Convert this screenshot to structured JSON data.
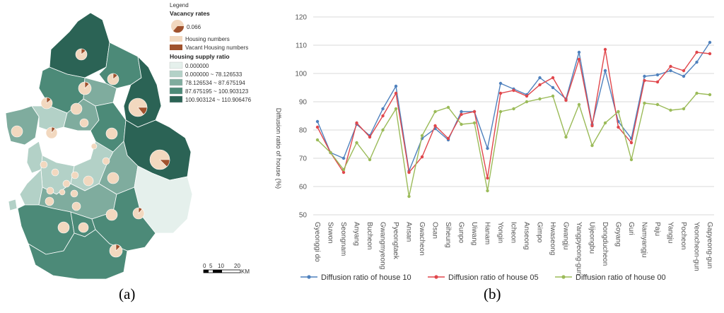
{
  "map": {
    "legend": {
      "title": "Legend",
      "vacancy_title": "Vacancy rates",
      "vacancy_value": "0.066",
      "housing_numbers": "Housing numbers",
      "vacant_numbers": "Vacant Housing numbers",
      "supply_title": "Housing supply ratio",
      "classes": [
        {
          "label": "0.000000",
          "color": "#e5f0ec"
        },
        {
          "label": "0.000000 ~ 78.126533",
          "color": "#b3d1c7"
        },
        {
          "label": "78.126534 ~ 87.675194",
          "color": "#7fac9e"
        },
        {
          "label": "87.675195 ~ 100.903123",
          "color": "#4c8a78"
        },
        {
          "label": "100.903124 ~ 110.906476",
          "color": "#2b6355"
        }
      ],
      "pie_fill": "#f2d8bf",
      "vacant_color": "#a0522d"
    },
    "scale": {
      "ticks": [
        "0",
        "5",
        "10",
        "20"
      ],
      "unit": "KM"
    }
  },
  "captions": {
    "a": "(a)",
    "b": "(b)"
  },
  "chart_data": {
    "type": "line",
    "title": "",
    "xlabel": "",
    "ylabel": "Diffusion ratio of house (%)",
    "ylim": [
      50,
      120
    ],
    "yticks": [
      50,
      60,
      70,
      80,
      90,
      100,
      110,
      120
    ],
    "grid": true,
    "legend_position": "bottom",
    "categories": [
      "Gyeonggi do",
      "Suwon",
      "Seongnam",
      "Anyang",
      "Bucheon",
      "Gwangmyeong",
      "Pyeongtaek",
      "Ansan",
      "Gwacheon",
      "Osan",
      "Siheung",
      "Gunpo",
      "Uiwang",
      "Hanam",
      "Yongin",
      "Icheon",
      "Anseong",
      "Gimpo",
      "Hwaseong",
      "Gwangju",
      "Yangpyeong-gun",
      "Uijeongbu",
      "Dongducheon",
      "Goyang",
      "Guri",
      "Namyangju",
      "Paju",
      "Yangju",
      "Pocheon",
      "Yeoncheon-gun",
      "Gapyeong-gun"
    ],
    "series": [
      {
        "name": "Diffusion ratio of house 10",
        "color": "#4f81bd",
        "values": [
          83,
          72,
          70,
          82,
          78,
          87.5,
          95.5,
          65.5,
          77,
          80.5,
          76.5,
          86.5,
          86.5,
          73.5,
          96.5,
          94.5,
          92.5,
          98.5,
          95,
          91,
          107.5,
          82,
          101,
          83,
          77,
          99,
          99.5,
          101,
          99,
          104,
          111
        ]
      },
      {
        "name": "Diffusion ratio of house 05",
        "color": "#e0474c",
        "values": [
          81,
          72,
          65,
          82.5,
          77.5,
          85,
          93,
          65,
          70.5,
          81.5,
          77,
          85.5,
          86.5,
          63,
          93,
          94,
          92,
          96,
          98.5,
          90.5,
          105,
          81.5,
          108.5,
          81,
          75.5,
          97.5,
          97,
          102.5,
          101,
          107.5,
          107
        ]
      },
      {
        "name": "Diffusion ratio of house 00",
        "color": "#9bbb59",
        "values": [
          76.5,
          72,
          66,
          75.5,
          69.5,
          80,
          87.5,
          56.5,
          78,
          86.5,
          88,
          82,
          82.5,
          58.5,
          86.5,
          87.5,
          90,
          91,
          92,
          77.5,
          89,
          74.5,
          82.5,
          86.5,
          69.5,
          89.5,
          89,
          87,
          87.5,
          93,
          92.5
        ]
      }
    ]
  }
}
